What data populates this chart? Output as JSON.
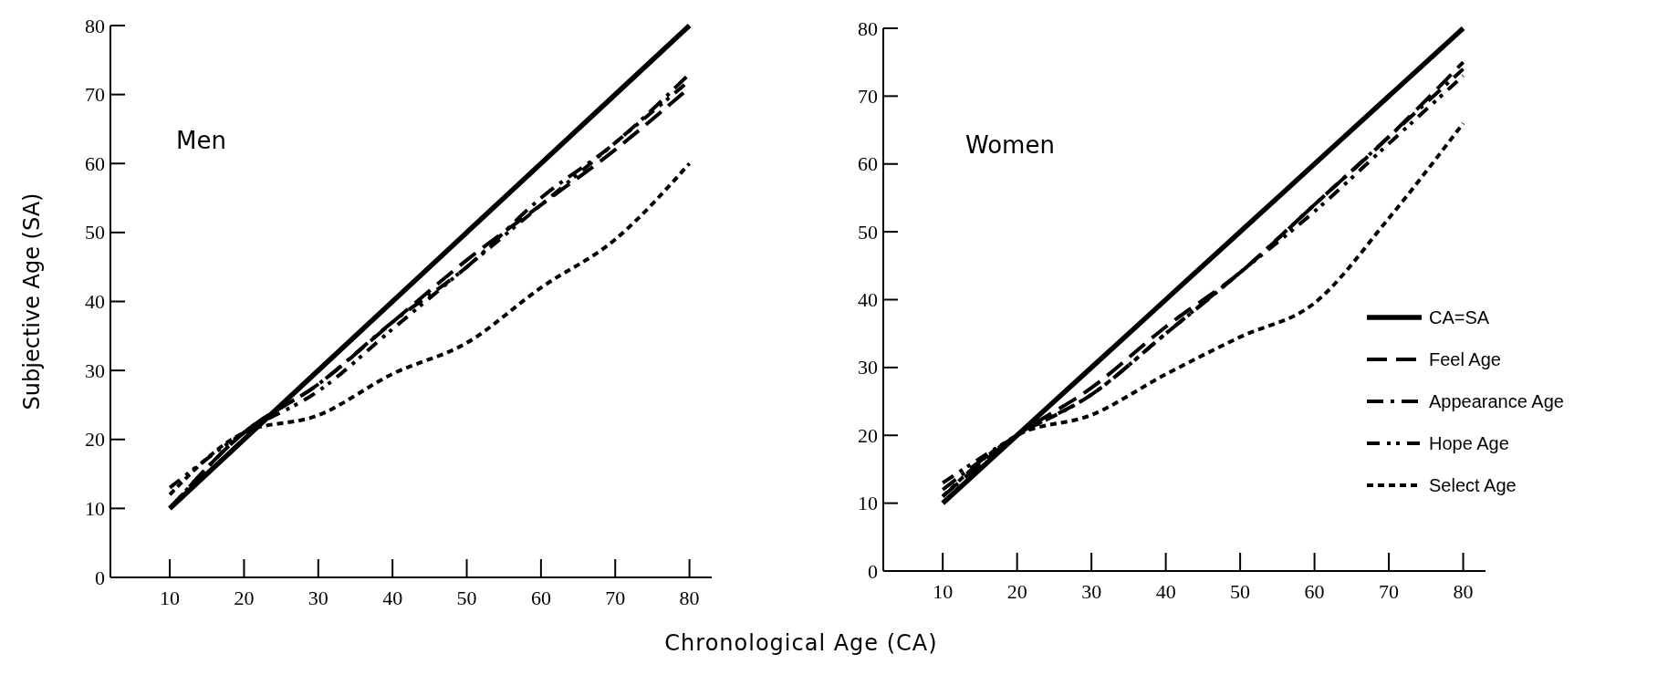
{
  "chart_data": [
    {
      "type": "line",
      "ylabel": "Subjective Age (SA)",
      "xlabel": "Chronological Age (CA)",
      "annotations": [
        "Men"
      ],
      "x": [
        10,
        20,
        30,
        40,
        50,
        60,
        70,
        80
      ],
      "xlim": [
        2,
        83
      ],
      "ylim": [
        0,
        80
      ],
      "xticks": [
        10,
        20,
        30,
        40,
        50,
        60,
        70,
        80
      ],
      "yticks": [
        0,
        10,
        20,
        30,
        40,
        50,
        60,
        70,
        80
      ],
      "grid": false,
      "legend": false,
      "series": [
        {
          "color": "#000000",
          "line_style": "solid",
          "values": [
            10,
            20,
            30,
            40,
            50,
            60,
            70,
            80
          ]
        },
        {
          "color": "#000000",
          "line_style": "dashed",
          "values": [
            10,
            21,
            28,
            37,
            46,
            54,
            62,
            71
          ]
        },
        {
          "color": "#000000",
          "line_style": "dashdot",
          "values": [
            10,
            21,
            28,
            37,
            45,
            55,
            63,
            73
          ]
        },
        {
          "color": "#000000",
          "line_style": "dashdotdot",
          "values": [
            13,
            21,
            27,
            36,
            45,
            54,
            63,
            72
          ]
        },
        {
          "color": "#000000",
          "line_style": "dotted",
          "values": [
            12,
            21,
            23.5,
            29.5,
            34,
            42,
            49,
            60
          ]
        }
      ]
    },
    {
      "type": "line",
      "annotations": [
        "Women"
      ],
      "x": [
        10,
        20,
        30,
        40,
        50,
        60,
        70,
        80
      ],
      "xlim": [
        2,
        83
      ],
      "ylim": [
        0,
        80
      ],
      "xticks": [
        10,
        20,
        30,
        40,
        50,
        60,
        70,
        80
      ],
      "yticks": [
        0,
        10,
        20,
        30,
        40,
        50,
        60,
        70,
        80
      ],
      "grid": false,
      "legend": "right",
      "series": [
        {
          "name": "CA=SA",
          "color": "#000000",
          "line_style": "solid",
          "values": [
            10,
            20,
            30,
            40,
            50,
            60,
            70,
            80
          ]
        },
        {
          "name": "Feel Age",
          "color": "#000000",
          "line_style": "dashed",
          "values": [
            11,
            20,
            27,
            36,
            44,
            54,
            64,
            75
          ]
        },
        {
          "name": "Appearance Age",
          "color": "#000000",
          "line_style": "dashdot",
          "values": [
            12,
            20,
            26,
            35,
            44,
            54,
            64,
            74
          ]
        },
        {
          "name": "Hope Age",
          "color": "#000000",
          "line_style": "dashdotdot",
          "values": [
            13,
            20,
            26,
            35,
            44,
            53,
            63,
            73
          ]
        },
        {
          "name": "Select Age",
          "color": "#000000",
          "line_style": "dotted",
          "values": [
            11,
            20,
            23,
            29,
            34.5,
            39.5,
            52,
            66
          ]
        }
      ]
    }
  ]
}
